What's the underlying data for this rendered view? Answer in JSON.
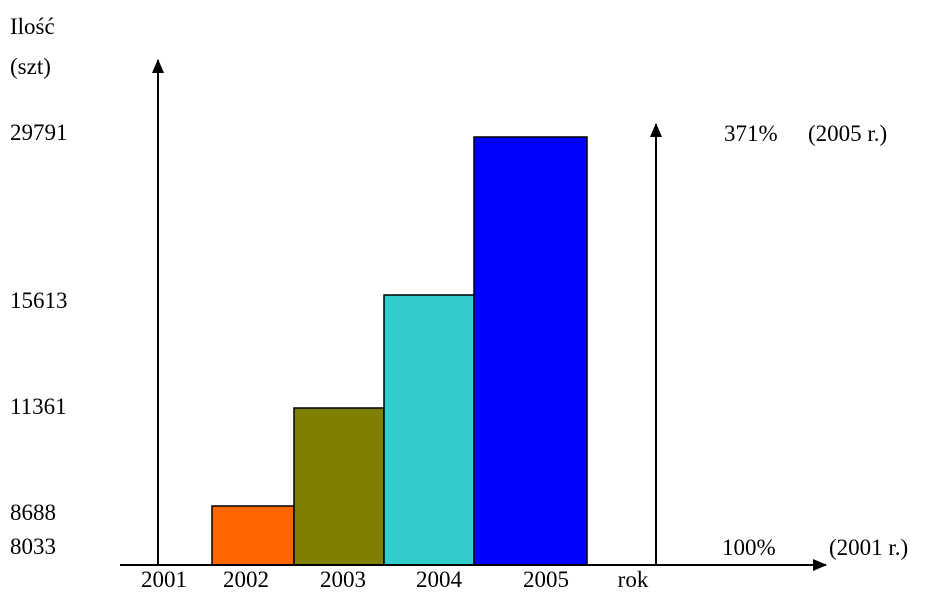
{
  "chart_data": {
    "type": "bar",
    "ylabel_line1": "Ilość",
    "ylabel_line2": "(szt)",
    "xlabel": "rok",
    "categories": [
      "2001",
      "2002",
      "2003",
      "2004",
      "2005"
    ],
    "values": [
      8033,
      8688,
      11361,
      15613,
      29791
    ],
    "colors": [
      "#ffffff",
      "#ff6600",
      "#808000",
      "#33cccc",
      "#0000ff"
    ],
    "ytick_labels": [
      "29791",
      "15613",
      "11361",
      "8688",
      "8033"
    ],
    "right_axis": {
      "top_pct": "371%",
      "top_note": "(2005 r.)",
      "bottom_pct": "100%",
      "bottom_note": "(2001 r.)"
    }
  }
}
